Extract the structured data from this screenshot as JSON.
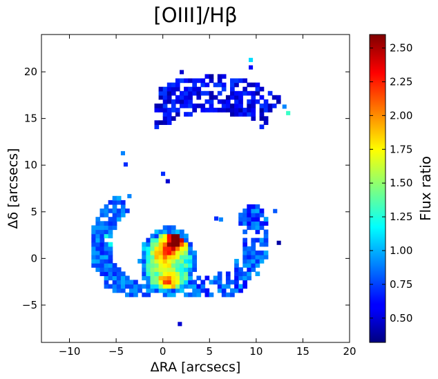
{
  "chart_data": {
    "type": "heatmap",
    "title": "[OIII]/Hβ",
    "xlabel": "ΔRA [arcsecs]",
    "ylabel": "Δδ [arcsecs]",
    "xlim": [
      -13,
      20
    ],
    "ylim": [
      -9,
      24
    ],
    "xticks": [
      -10,
      -5,
      0,
      5,
      10,
      15,
      20
    ],
    "xtick_labels": [
      "−10",
      "−5",
      "0",
      "5",
      "10",
      "15",
      "20"
    ],
    "yticks": [
      -5,
      0,
      5,
      10,
      15,
      20
    ],
    "ytick_labels": [
      "−5",
      "0",
      "5",
      "10",
      "15",
      "20"
    ],
    "grid": false,
    "colormap": "jet",
    "colorbar": {
      "label": "Flux ratio",
      "range": [
        0.32,
        2.6
      ],
      "ticks": [
        0.5,
        0.75,
        1.0,
        1.25,
        1.5,
        1.75,
        2.0,
        2.25,
        2.5
      ],
      "tick_labels": [
        "0.50",
        "0.75",
        "1.00",
        "1.25",
        "1.50",
        "1.75",
        "2.00",
        "2.25",
        "2.50"
      ]
    },
    "regions": [
      {
        "name": "upper arc",
        "x": [
          -1.5,
          13.3
        ],
        "y": [
          14.5,
          21.8
        ],
        "typical_value": 0.6
      },
      {
        "name": "left arc",
        "x": [
          -8.0,
          -2.0
        ],
        "y": [
          -4.0,
          7.0
        ],
        "typical_value": 0.85
      },
      {
        "name": "central nucleus",
        "x": [
          -2.5,
          3.5
        ],
        "y": [
          -4.3,
          3.2
        ],
        "typical_value": 1.3,
        "peak_value": 2.6,
        "peak_location": [
          1.2,
          1.8
        ]
      },
      {
        "name": "right arc",
        "x": [
          3.5,
          12.0
        ],
        "y": [
          -4.0,
          5.5
        ],
        "typical_value": 0.75
      }
    ]
  }
}
